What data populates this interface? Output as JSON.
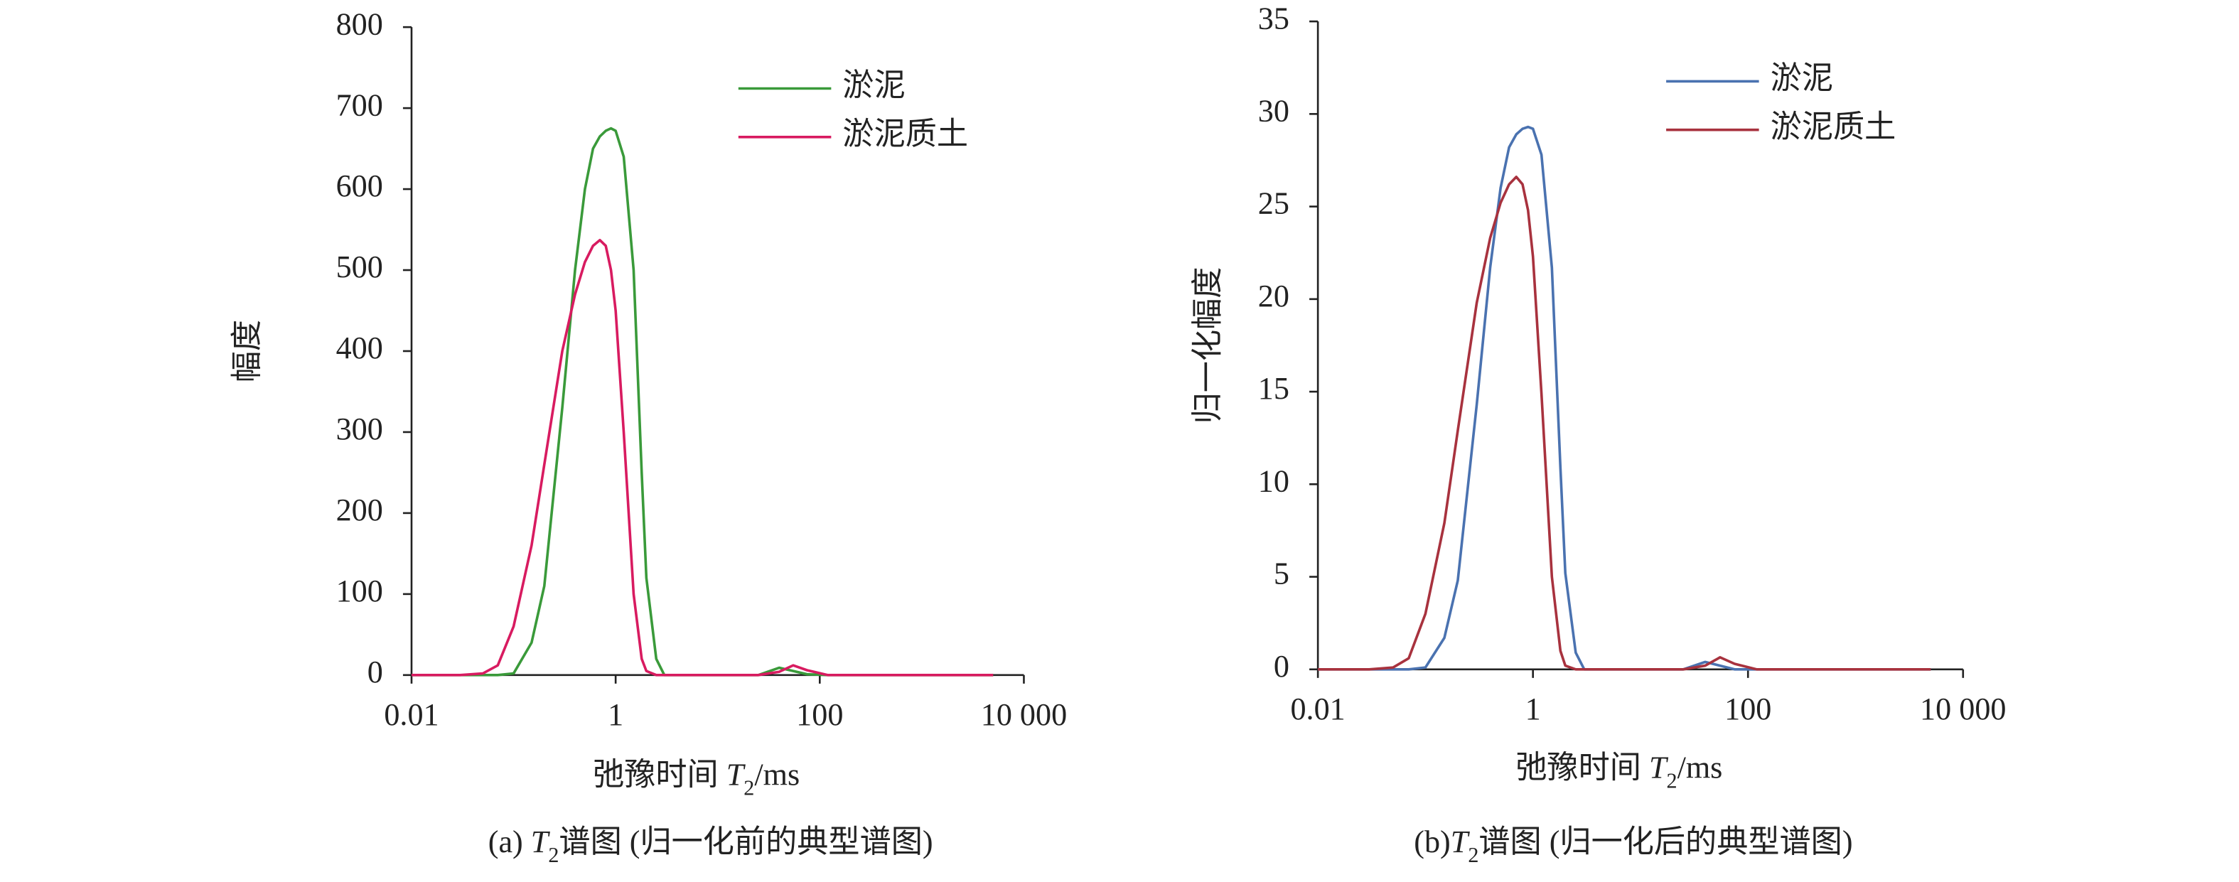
{
  "chart_data": [
    {
      "type": "line",
      "caption": [
        "(a) ",
        "T",
        "2",
        "谱图 (归一化前的典型谱图)"
      ],
      "xlabel": [
        "弛豫时间 ",
        "T",
        "2",
        "/ms"
      ],
      "ylabel": "幅度",
      "x": [
        0.01,
        0.03,
        0.05,
        0.07,
        0.1,
        0.15,
        0.2,
        0.3,
        0.4,
        0.5,
        0.6,
        0.7,
        0.8,
        0.9,
        1,
        1.2,
        1.5,
        1.8,
        2,
        2.5,
        3,
        4,
        10,
        25,
        40,
        55,
        75,
        120,
        1000,
        5000
      ],
      "series": [
        {
          "name": "淤泥",
          "color": "#3a9a3a",
          "values": [
            0,
            0,
            0,
            0,
            2,
            40,
            110,
            330,
            500,
            600,
            650,
            665,
            672,
            675,
            672,
            640,
            500,
            250,
            120,
            20,
            0,
            0,
            0,
            0,
            9,
            5,
            1,
            0,
            0,
            0
          ]
        },
        {
          "name": "淤泥质土",
          "color": "#d81b60",
          "values": [
            0,
            0,
            2,
            12,
            60,
            160,
            260,
            400,
            470,
            510,
            530,
            537,
            530,
            500,
            450,
            300,
            100,
            20,
            5,
            0,
            0,
            0,
            0,
            0,
            4,
            12,
            6,
            0,
            0,
            0
          ]
        }
      ],
      "xlog": true,
      "xlim": [
        0.01,
        10000
      ],
      "xticks": [
        0.01,
        1,
        100,
        {
          "value": 10000,
          "label": "10 000"
        }
      ],
      "ylim": [
        0,
        800
      ],
      "yticks": [
        0,
        100,
        200,
        300,
        400,
        500,
        600,
        700,
        800
      ],
      "legend": "upper right"
    },
    {
      "type": "line",
      "caption": [
        "(b)",
        "T",
        "2",
        "谱图 (归一化后的典型谱图)"
      ],
      "xlabel": [
        "弛豫时间 ",
        "T",
        "2",
        "/ms"
      ],
      "ylabel": "归一化幅度",
      "x": [
        0.01,
        0.03,
        0.05,
        0.07,
        0.1,
        0.15,
        0.2,
        0.3,
        0.4,
        0.5,
        0.6,
        0.7,
        0.8,
        0.9,
        1,
        1.2,
        1.5,
        1.8,
        2,
        2.5,
        3,
        4,
        10,
        25,
        40,
        55,
        75,
        120,
        1000,
        5000
      ],
      "series": [
        {
          "name": "淤泥",
          "color": "#4a72b0",
          "values": [
            0,
            0,
            0,
            0,
            0.1,
            1.7,
            4.8,
            14.3,
            21.7,
            26,
            28.2,
            28.9,
            29.2,
            29.3,
            29.2,
            27.8,
            21.7,
            10.9,
            5.2,
            0.9,
            0,
            0,
            0,
            0,
            0.4,
            0.2,
            0,
            0,
            0,
            0
          ]
        },
        {
          "name": "淤泥质土",
          "color": "#a8323e",
          "values": [
            0,
            0,
            0.1,
            0.6,
            3,
            7.9,
            12.9,
            19.8,
            23.3,
            25.2,
            26.2,
            26.6,
            26.2,
            24.8,
            22.3,
            14.9,
            5,
            1,
            0.2,
            0,
            0,
            0,
            0,
            0,
            0.2,
            0.65,
            0.3,
            0,
            0,
            0
          ]
        }
      ],
      "xlog": true,
      "xlim": [
        0.01,
        10000
      ],
      "xticks": [
        0.01,
        1,
        100,
        {
          "value": 10000,
          "label": "10 000"
        }
      ],
      "ylim": [
        0,
        35
      ],
      "yticks": [
        0,
        5,
        10,
        15,
        20,
        25,
        30,
        35
      ],
      "legend": "upper right"
    }
  ]
}
